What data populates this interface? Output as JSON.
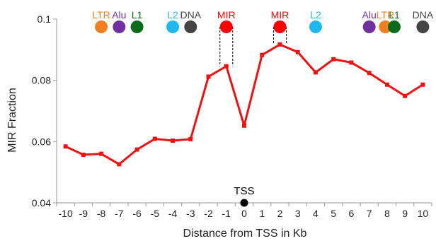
{
  "chart_data": {
    "type": "line",
    "ylabel": "MIR Fraction",
    "xlabel": "Distance from TSS in Kb",
    "ylim": [
      0.04,
      0.1
    ],
    "xlim": [
      -10.5,
      10.5
    ],
    "yticks": [
      0.04,
      0.06,
      0.08,
      0.1
    ],
    "ytick_labels": [
      "0.04",
      "0.06",
      "0.08",
      "0.1"
    ],
    "xticks": [
      -10,
      -9,
      -8,
      -7,
      -6,
      -5,
      -4,
      -3,
      -2,
      -1,
      0,
      1,
      2,
      3,
      4,
      5,
      6,
      7,
      8,
      9,
      10
    ],
    "xtick_labels": [
      "-10",
      "-9",
      "-8",
      "-7",
      "-6",
      "-5",
      "-4",
      "-3",
      "-2",
      "-1",
      "0",
      "1",
      "2",
      "3",
      "4",
      "5",
      "6",
      "7",
      "8",
      "9",
      "10"
    ],
    "series": [
      {
        "color": "#ee1111",
        "x": [
          -10,
          -9,
          -8,
          -7,
          -6,
          -5,
          -4,
          -3,
          -2,
          -1,
          0,
          1,
          2,
          3,
          4,
          5,
          6,
          7,
          8,
          9,
          10
        ],
        "y": [
          0.0584,
          0.0557,
          0.056,
          0.0526,
          0.0574,
          0.0609,
          0.0603,
          0.0608,
          0.0812,
          0.0846,
          0.0652,
          0.0883,
          0.0917,
          0.0892,
          0.0826,
          0.0869,
          0.0858,
          0.0824,
          0.0786,
          0.0749,
          0.0786
        ]
      }
    ],
    "tss_marker": {
      "label": "TSS",
      "x": 0,
      "y": 0.04,
      "color": "#000000"
    },
    "repeat_markers": [
      {
        "label": "LTR",
        "x": -8,
        "color": "#f07f1f"
      },
      {
        "label": "Alu",
        "x": -7,
        "color": "#7030a0"
      },
      {
        "label": "L1",
        "x": -6,
        "color": "#0b6b1b"
      },
      {
        "label": "L2",
        "x": -4,
        "color": "#20b8ec"
      },
      {
        "label": "DNA",
        "x": -3,
        "color": "#444444"
      },
      {
        "label": "MIR",
        "x": -1,
        "color": "#ff0000"
      },
      {
        "label": "MIR",
        "x": 2,
        "color": "#ff0000"
      },
      {
        "label": "L2",
        "x": 4,
        "color": "#20b8ec"
      },
      {
        "label": "Alu",
        "x": 7,
        "color": "#7030a0"
      },
      {
        "label": "LTR",
        "x": 7.9,
        "color": "#f07f1f"
      },
      {
        "label": "L1",
        "x": 8.4,
        "color": "#0b6b1b"
      },
      {
        "label": "DNA",
        "x": 10,
        "color": "#444444"
      }
    ],
    "bracketed_points": [
      -1,
      2
    ],
    "colors": {
      "axis": "#999999",
      "text": "#222222",
      "bracket": "#000000"
    }
  }
}
